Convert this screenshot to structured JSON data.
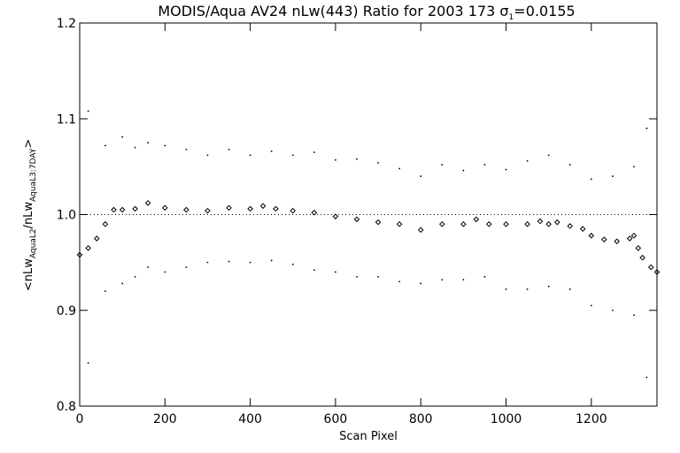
{
  "chart_data": {
    "type": "scatter",
    "title": "MODIS/Aqua AV24 nLw(443) Ratio for 2003 173 σ₁=0.0155",
    "title_parts": {
      "main": "MODIS/Aqua AV24 nLw(443) Ratio for 2003 173 σ",
      "sub": "1",
      "tail": "=0.0155"
    },
    "xlabel": "Scan Pixel",
    "ylabel": "<nLw_AquaL2/nLw_AquaL3:7DAY>",
    "ylabel_parts": [
      "<nLw",
      "AquaL2",
      "/nLw",
      "AquaL3:7DAY",
      ">"
    ],
    "xlim": [
      0,
      1354
    ],
    "ylim": [
      0.8,
      1.2
    ],
    "x_ticks": [
      0,
      200,
      400,
      600,
      800,
      1000,
      1200
    ],
    "x_tick_labels": [
      "0",
      "200",
      "400",
      "600",
      "800",
      "1000",
      "1200"
    ],
    "y_ticks": [
      0.8,
      0.9,
      1.0,
      1.1,
      1.2
    ],
    "y_tick_labels": [
      "0.8",
      "0.9",
      "1.0",
      "1.1",
      "1.2"
    ],
    "reference_line": 1.0,
    "series": [
      {
        "marker": "diamond",
        "x": [
          0,
          20,
          40,
          60,
          80,
          100,
          130,
          160,
          200,
          250,
          300,
          350,
          400,
          430,
          460,
          500,
          550,
          600,
          650,
          700,
          750,
          800,
          850,
          900,
          930,
          960,
          1000,
          1050,
          1080,
          1100,
          1120,
          1150,
          1180,
          1200,
          1230,
          1260,
          1290,
          1300,
          1310,
          1320,
          1340,
          1354
        ],
        "y": [
          0.958,
          0.965,
          0.975,
          0.99,
          1.005,
          1.005,
          1.006,
          1.012,
          1.007,
          1.005,
          1.004,
          1.007,
          1.006,
          1.009,
          1.006,
          1.004,
          1.002,
          0.998,
          0.995,
          0.992,
          0.99,
          0.984,
          0.99,
          0.99,
          0.995,
          0.99,
          0.99,
          0.99,
          0.993,
          0.99,
          0.992,
          0.988,
          0.985,
          0.978,
          0.974,
          0.972,
          0.975,
          0.978,
          0.965,
          0.955,
          0.945,
          0.94
        ]
      },
      {
        "marker": "dot",
        "x": [
          20,
          60,
          100,
          130,
          160,
          200,
          250,
          300,
          350,
          400,
          450,
          500,
          550,
          600,
          650,
          700,
          750,
          800,
          850,
          900,
          950,
          1000,
          1050,
          1100,
          1150,
          1200,
          1250,
          1300,
          1330
        ],
        "y": [
          1.108,
          1.072,
          1.081,
          1.07,
          1.075,
          1.072,
          1.068,
          1.062,
          1.068,
          1.062,
          1.066,
          1.062,
          1.065,
          1.057,
          1.058,
          1.054,
          1.048,
          1.04,
          1.052,
          1.046,
          1.052,
          1.047,
          1.056,
          1.062,
          1.052,
          1.037,
          1.04,
          1.05,
          1.09
        ]
      },
      {
        "marker": "dot",
        "x": [
          20,
          60,
          100,
          130,
          160,
          200,
          250,
          300,
          350,
          400,
          450,
          500,
          550,
          600,
          650,
          700,
          750,
          800,
          850,
          900,
          950,
          1000,
          1050,
          1100,
          1150,
          1200,
          1250,
          1300,
          1330
        ],
        "y": [
          0.845,
          0.92,
          0.928,
          0.935,
          0.945,
          0.94,
          0.945,
          0.95,
          0.951,
          0.95,
          0.952,
          0.948,
          0.942,
          0.94,
          0.935,
          0.935,
          0.93,
          0.928,
          0.932,
          0.932,
          0.935,
          0.922,
          0.922,
          0.925,
          0.922,
          0.905,
          0.9,
          0.895,
          0.83
        ]
      }
    ]
  }
}
